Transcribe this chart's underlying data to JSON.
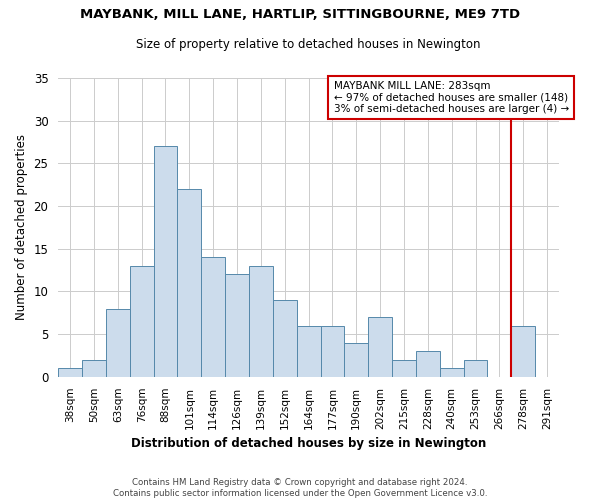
{
  "title": "MAYBANK, MILL LANE, HARTLIP, SITTINGBOURNE, ME9 7TD",
  "subtitle": "Size of property relative to detached houses in Newington",
  "xlabel": "Distribution of detached houses by size in Newington",
  "ylabel": "Number of detached properties",
  "bin_labels": [
    "38sqm",
    "50sqm",
    "63sqm",
    "76sqm",
    "88sqm",
    "101sqm",
    "114sqm",
    "126sqm",
    "139sqm",
    "152sqm",
    "164sqm",
    "177sqm",
    "190sqm",
    "202sqm",
    "215sqm",
    "228sqm",
    "240sqm",
    "253sqm",
    "266sqm",
    "278sqm",
    "291sqm"
  ],
  "bar_values": [
    1,
    2,
    8,
    13,
    27,
    22,
    14,
    12,
    13,
    9,
    6,
    6,
    4,
    7,
    2,
    3,
    1,
    2,
    0,
    6,
    0
  ],
  "bar_color": "#ccdcec",
  "bar_edge_color": "#5588aa",
  "vline_index": 19,
  "vline_color": "#cc0000",
  "annotation_box_color": "#cc0000",
  "annotation_title": "MAYBANK MILL LANE: 283sqm",
  "annotation_line1": "← 97% of detached houses are smaller (148)",
  "annotation_line2": "3% of semi-detached houses are larger (4) →",
  "ylim": [
    0,
    35
  ],
  "yticks": [
    0,
    5,
    10,
    15,
    20,
    25,
    30,
    35
  ],
  "footer_line1": "Contains HM Land Registry data © Crown copyright and database right 2024.",
  "footer_line2": "Contains public sector information licensed under the Open Government Licence v3.0.",
  "bg_color": "#ffffff",
  "grid_color": "#cccccc"
}
